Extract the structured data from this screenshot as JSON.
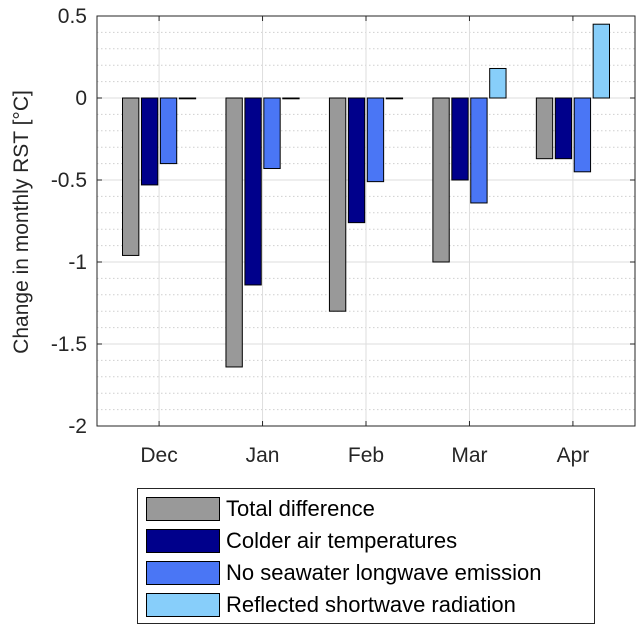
{
  "chart_data": {
    "type": "bar",
    "categories": [
      "Dec",
      "Jan",
      "Feb",
      "Mar",
      "Apr"
    ],
    "ylabel": "Change in monthly RST [°C]",
    "xlabel": "",
    "title": "",
    "ylim": [
      -2,
      0.5
    ],
    "yticks": [
      0.5,
      0,
      -0.5,
      -1,
      -1.5,
      -2
    ],
    "ytick_labels": [
      "0.5",
      "0",
      "-0.5",
      "-1",
      "-1.5",
      "-2"
    ],
    "grid": true,
    "legend_position": "bottom",
    "series": [
      {
        "name": "Total difference",
        "color": "#999999",
        "values": [
          -0.96,
          -1.64,
          -1.3,
          -1.0,
          -0.37
        ]
      },
      {
        "name": "Colder air temperatures",
        "color": "#00008b",
        "values": [
          -0.53,
          -1.14,
          -0.76,
          -0.5,
          -0.37
        ]
      },
      {
        "name": "No seawater longwave emission",
        "color": "#4a76f5",
        "values": [
          -0.4,
          -0.43,
          -0.51,
          -0.64,
          -0.45
        ]
      },
      {
        "name": "Reflected shortwave radiation",
        "color": "#87cefa",
        "values": [
          0.0,
          0.0,
          0.0,
          0.18,
          0.45
        ]
      }
    ]
  }
}
